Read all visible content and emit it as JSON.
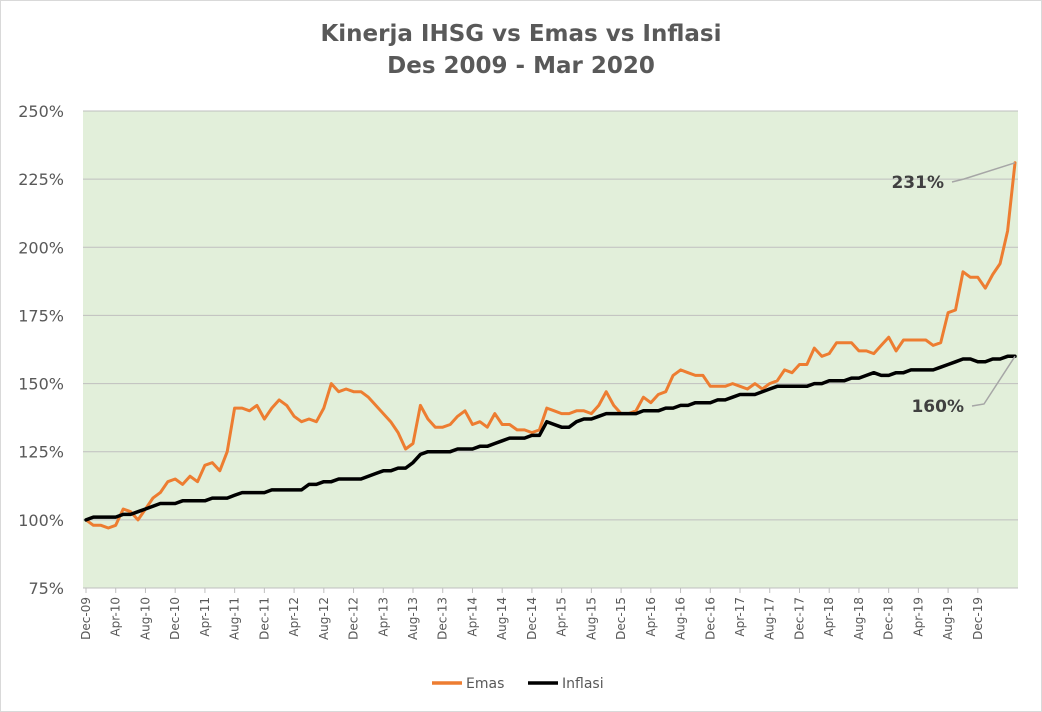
{
  "colors": {
    "emas": "#ed7d31",
    "inflasi": "#000000",
    "plot_bg": "#e2efda",
    "grid": "#bfbfbf",
    "leader": "#a6a6a6"
  },
  "chart_data": {
    "type": "line",
    "title": "Kinerja IHSG vs Emas vs Inflasi",
    "subtitle": "Des 2009 - Mar 2020",
    "xlabel": "",
    "ylabel": "",
    "ylim": [
      75,
      250
    ],
    "y_ticks": [
      75,
      100,
      125,
      150,
      175,
      200,
      225,
      250
    ],
    "y_tick_labels": [
      "75%",
      "100%",
      "125%",
      "150%",
      "175%",
      "200%",
      "225%",
      "250%"
    ],
    "x_tick_labels": [
      "Dec-09",
      "Apr-10",
      "Aug-10",
      "Dec-10",
      "Apr-11",
      "Aug-11",
      "Dec-11",
      "Apr-12",
      "Aug-12",
      "Dec-12",
      "Apr-13",
      "Aug-13",
      "Dec-13",
      "Apr-14",
      "Aug-14",
      "Dec-14",
      "Apr-15",
      "Aug-15",
      "Dec-15",
      "Apr-16",
      "Aug-16",
      "Dec-16",
      "Apr-17",
      "Aug-17",
      "Dec-17",
      "Apr-18",
      "Aug-18",
      "Dec-18",
      "Apr-19",
      "Aug-19",
      "Dec-19"
    ],
    "x_tick_step": 4,
    "grid": "horizontal",
    "legend_position": "bottom",
    "series": [
      {
        "name": "Emas",
        "color": "#ed7d31",
        "values": [
          100,
          98,
          98,
          97,
          98,
          104,
          103,
          100,
          104,
          108,
          110,
          114,
          115,
          113,
          116,
          114,
          120,
          121,
          118,
          125,
          141,
          141,
          140,
          142,
          137,
          141,
          144,
          142,
          138,
          136,
          137,
          136,
          141,
          150,
          147,
          148,
          147,
          147,
          145,
          142,
          139,
          136,
          132,
          126,
          128,
          142,
          137,
          134,
          134,
          135,
          138,
          140,
          135,
          136,
          134,
          139,
          135,
          135,
          133,
          133,
          132,
          133,
          141,
          140,
          139,
          139,
          140,
          140,
          139,
          142,
          147,
          142,
          139,
          139,
          140,
          145,
          143,
          146,
          147,
          153,
          155,
          154,
          153,
          153,
          149,
          149,
          149,
          150,
          149,
          148,
          150,
          148,
          150,
          151,
          155,
          154,
          157,
          157,
          163,
          160,
          161,
          165,
          165,
          165,
          162,
          162,
          161,
          164,
          167,
          162,
          166,
          166,
          166,
          166,
          164,
          165,
          176,
          177,
          191,
          189,
          189,
          185,
          190,
          194,
          206,
          231
        ],
        "annotation": "231%"
      },
      {
        "name": "Inflasi",
        "color": "#000000",
        "values": [
          100,
          101,
          101,
          101,
          101,
          102,
          102,
          103,
          104,
          105,
          106,
          106,
          106,
          107,
          107,
          107,
          107,
          108,
          108,
          108,
          109,
          110,
          110,
          110,
          110,
          111,
          111,
          111,
          111,
          111,
          113,
          113,
          114,
          114,
          115,
          115,
          115,
          115,
          116,
          117,
          118,
          118,
          119,
          119,
          121,
          124,
          125,
          125,
          125,
          125,
          126,
          126,
          126,
          127,
          127,
          128,
          129,
          130,
          130,
          130,
          131,
          131,
          136,
          135,
          134,
          134,
          136,
          137,
          137,
          138,
          139,
          139,
          139,
          139,
          139,
          140,
          140,
          140,
          141,
          141,
          142,
          142,
          143,
          143,
          143,
          144,
          144,
          145,
          146,
          146,
          146,
          147,
          148,
          149,
          149,
          149,
          149,
          149,
          150,
          150,
          151,
          151,
          151,
          152,
          152,
          153,
          154,
          153,
          153,
          154,
          154,
          155,
          155,
          155,
          155,
          156,
          157,
          158,
          159,
          159,
          158,
          158,
          159,
          159,
          160,
          160
        ],
        "annotation": "160%"
      }
    ]
  }
}
